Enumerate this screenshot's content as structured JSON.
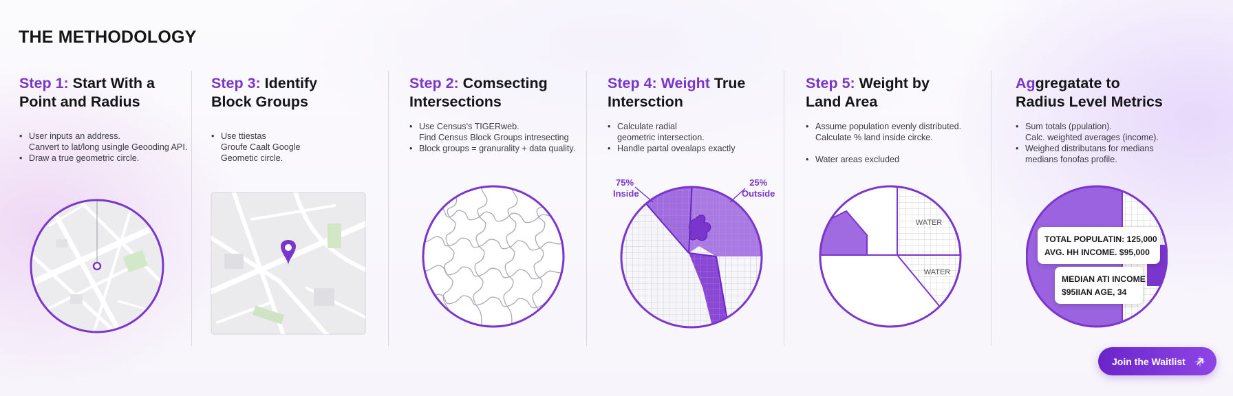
{
  "page": {
    "title": "THE METHODOLOGY"
  },
  "colors": {
    "accent": "#7a36cc",
    "accent_dark": "#6a25c9",
    "map_road": "#ffffff",
    "map_bg": "#ebebee",
    "grid": "#b8b8c0"
  },
  "steps": [
    {
      "title_accent": "Step 1:",
      "title_rest": " Start With a",
      "title_line2": "Point and Radius",
      "bullets": [
        "User inputs an address.",
        "Canvert to lat/long usingle Geooding API.",
        "Draw a true geometric circle."
      ],
      "visual": "map-circle-with-center-point"
    },
    {
      "title_accent": "Step 3:",
      "title_rest": " Identify",
      "title_line2": "Block Groups",
      "bullets": [
        "Use ttiestas",
        "Groufe Caalt Google",
        "Geometic circle."
      ],
      "visual": "map-tile-with-location-pin-icon"
    },
    {
      "title_accent": "Step 2:",
      "title_rest": " Comsecting",
      "title_line2": "Intersections",
      "bullets": [
        "Use Census's TIGERweb.",
        "Find Census Block Groups intresecting",
        "Block groups = granurality + data quality."
      ],
      "visual": "puzzle-circle"
    },
    {
      "title_accent": "Step 4: Weight",
      "title_rest": " True",
      "title_line2": "Intersction",
      "bullets": [
        "Calculate radial",
        "geometric intersection.",
        "Handle partal ovealaps exactly"
      ],
      "labels": {
        "inside_pct": "75%",
        "inside": "Inside",
        "outside_pct": "25%",
        "outside": "Outside"
      },
      "visual": "grid-circle-partial-overlap"
    },
    {
      "title_accent": "Step 5:",
      "title_rest": " Weight by",
      "title_line2": "Land Area",
      "bullets": [
        "Assume population evenly distributed.",
        "Calculate % land inside circke.",
        "Water areas excluded"
      ],
      "labels": {
        "water1": "WATER",
        "water2": "WATER"
      },
      "visual": "land-area-circle"
    },
    {
      "title_accent": "Ag",
      "title_rest": "gregatate to",
      "title_line2": "Radius Level Metrics",
      "bullets": [
        "Sum totals (ppulation).",
        "Calc. weighted averages (income).",
        "Weighed distributans for medians",
        "medians fonofas profile."
      ],
      "labels": {
        "card1_line1": "TOTAL POPULATIN: 125,000",
        "card1_line2": "AVG. HH INCOME. $95,000",
        "card2_line1": "MEDIAN ATI INCOME",
        "card2_line2": "$95IIAN AGE, 34"
      },
      "visual": "metrics-circle"
    }
  ],
  "cta": {
    "label": "Join the Waitlist",
    "icon": "arrow-up-right-icon"
  }
}
